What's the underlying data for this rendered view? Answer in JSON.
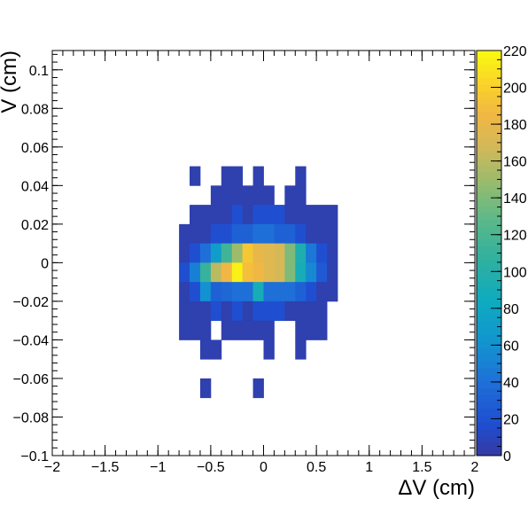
{
  "chart_data": {
    "type": "heatmap",
    "title": "",
    "xlabel": "ΔV (cm)",
    "ylabel": "V (cm)",
    "xlim": [
      -2,
      2
    ],
    "ylim": [
      -0.1,
      0.11
    ],
    "x_ticks": [
      "−2",
      "−1.5",
      "−1",
      "−0.5",
      "0",
      "0.5",
      "1",
      "1.5",
      "2"
    ],
    "y_ticks": [
      "−0.1",
      "−0.08",
      "−0.06",
      "−0.04",
      "−0.02",
      "0",
      "0.02",
      "0.04",
      "0.06",
      "0.08",
      "0.1"
    ],
    "colorbar": {
      "range": [
        0,
        220
      ],
      "ticks": [
        "0",
        "20",
        "40",
        "60",
        "80",
        "100",
        "120",
        "140",
        "160",
        "180",
        "200",
        "220"
      ]
    },
    "bin_width_x": 0.1,
    "bin_width_y": 0.01,
    "cells": [
      {
        "x": -0.65,
        "y": 0.045,
        "v": 5
      },
      {
        "x": -0.35,
        "y": 0.045,
        "v": 5
      },
      {
        "x": -0.25,
        "y": 0.045,
        "v": 5
      },
      {
        "x": -0.05,
        "y": 0.045,
        "v": 5
      },
      {
        "x": 0.35,
        "y": 0.045,
        "v": 5
      },
      {
        "x": -0.45,
        "y": 0.035,
        "v": 5
      },
      {
        "x": -0.35,
        "y": 0.035,
        "v": 5
      },
      {
        "x": -0.25,
        "y": 0.035,
        "v": 5
      },
      {
        "x": -0.15,
        "y": 0.035,
        "v": 5
      },
      {
        "x": -0.05,
        "y": 0.035,
        "v": 5
      },
      {
        "x": 0.05,
        "y": 0.035,
        "v": 5
      },
      {
        "x": 0.25,
        "y": 0.035,
        "v": 5
      },
      {
        "x": 0.35,
        "y": 0.035,
        "v": 5
      },
      {
        "x": -0.65,
        "y": 0.025,
        "v": 5
      },
      {
        "x": -0.55,
        "y": 0.025,
        "v": 5
      },
      {
        "x": -0.45,
        "y": 0.025,
        "v": 5
      },
      {
        "x": -0.35,
        "y": 0.025,
        "v": 5
      },
      {
        "x": -0.25,
        "y": 0.025,
        "v": 18
      },
      {
        "x": -0.15,
        "y": 0.025,
        "v": 5
      },
      {
        "x": -0.05,
        "y": 0.025,
        "v": 18
      },
      {
        "x": 0.05,
        "y": 0.025,
        "v": 18
      },
      {
        "x": 0.15,
        "y": 0.025,
        "v": 18
      },
      {
        "x": 0.25,
        "y": 0.025,
        "v": 5
      },
      {
        "x": 0.35,
        "y": 0.025,
        "v": 5
      },
      {
        "x": 0.45,
        "y": 0.025,
        "v": 5
      },
      {
        "x": 0.55,
        "y": 0.025,
        "v": 5
      },
      {
        "x": 0.65,
        "y": 0.025,
        "v": 5
      },
      {
        "x": -0.75,
        "y": 0.015,
        "v": 5
      },
      {
        "x": -0.65,
        "y": 0.015,
        "v": 5
      },
      {
        "x": -0.55,
        "y": 0.015,
        "v": 5
      },
      {
        "x": -0.45,
        "y": 0.015,
        "v": 18
      },
      {
        "x": -0.35,
        "y": 0.015,
        "v": 18
      },
      {
        "x": -0.25,
        "y": 0.015,
        "v": 30
      },
      {
        "x": -0.15,
        "y": 0.015,
        "v": 30
      },
      {
        "x": -0.05,
        "y": 0.015,
        "v": 40
      },
      {
        "x": 0.05,
        "y": 0.015,
        "v": 40
      },
      {
        "x": 0.15,
        "y": 0.015,
        "v": 30
      },
      {
        "x": 0.25,
        "y": 0.015,
        "v": 30
      },
      {
        "x": 0.35,
        "y": 0.015,
        "v": 18
      },
      {
        "x": 0.45,
        "y": 0.015,
        "v": 5
      },
      {
        "x": 0.55,
        "y": 0.015,
        "v": 5
      },
      {
        "x": 0.65,
        "y": 0.015,
        "v": 5
      },
      {
        "x": -0.75,
        "y": 0.005,
        "v": 5
      },
      {
        "x": -0.65,
        "y": 0.005,
        "v": 18
      },
      {
        "x": -0.55,
        "y": 0.005,
        "v": 40
      },
      {
        "x": -0.45,
        "y": 0.005,
        "v": 70
      },
      {
        "x": -0.35,
        "y": 0.005,
        "v": 115
      },
      {
        "x": -0.25,
        "y": 0.005,
        "v": 150
      },
      {
        "x": -0.15,
        "y": 0.005,
        "v": 195
      },
      {
        "x": -0.05,
        "y": 0.005,
        "v": 180
      },
      {
        "x": 0.05,
        "y": 0.005,
        "v": 175
      },
      {
        "x": 0.15,
        "y": 0.005,
        "v": 170
      },
      {
        "x": 0.25,
        "y": 0.005,
        "v": 140
      },
      {
        "x": 0.35,
        "y": 0.005,
        "v": 95
      },
      {
        "x": 0.45,
        "y": 0.005,
        "v": 45
      },
      {
        "x": 0.55,
        "y": 0.005,
        "v": 18
      },
      {
        "x": 0.65,
        "y": 0.005,
        "v": 5
      },
      {
        "x": -0.75,
        "y": -0.005,
        "v": 18
      },
      {
        "x": -0.65,
        "y": -0.005,
        "v": 50
      },
      {
        "x": -0.55,
        "y": -0.005,
        "v": 110
      },
      {
        "x": -0.45,
        "y": -0.005,
        "v": 160
      },
      {
        "x": -0.35,
        "y": -0.005,
        "v": 185
      },
      {
        "x": -0.25,
        "y": -0.005,
        "v": 215
      },
      {
        "x": -0.15,
        "y": -0.005,
        "v": 190
      },
      {
        "x": -0.05,
        "y": -0.005,
        "v": 185
      },
      {
        "x": 0.05,
        "y": -0.005,
        "v": 175
      },
      {
        "x": 0.15,
        "y": -0.005,
        "v": 170
      },
      {
        "x": 0.25,
        "y": -0.005,
        "v": 140
      },
      {
        "x": 0.35,
        "y": -0.005,
        "v": 90
      },
      {
        "x": 0.45,
        "y": -0.005,
        "v": 55
      },
      {
        "x": 0.55,
        "y": -0.005,
        "v": 25
      },
      {
        "x": 0.65,
        "y": -0.005,
        "v": 5
      },
      {
        "x": -0.75,
        "y": -0.015,
        "v": 5
      },
      {
        "x": -0.65,
        "y": -0.015,
        "v": 18
      },
      {
        "x": -0.55,
        "y": -0.015,
        "v": 60
      },
      {
        "x": -0.45,
        "y": -0.015,
        "v": 30
      },
      {
        "x": -0.35,
        "y": -0.015,
        "v": 35
      },
      {
        "x": -0.25,
        "y": -0.015,
        "v": 40
      },
      {
        "x": -0.15,
        "y": -0.015,
        "v": 40
      },
      {
        "x": -0.05,
        "y": -0.015,
        "v": 90
      },
      {
        "x": 0.05,
        "y": -0.015,
        "v": 40
      },
      {
        "x": 0.15,
        "y": -0.015,
        "v": 40
      },
      {
        "x": 0.25,
        "y": -0.015,
        "v": 40
      },
      {
        "x": 0.35,
        "y": -0.015,
        "v": 30
      },
      {
        "x": 0.45,
        "y": -0.015,
        "v": 18
      },
      {
        "x": 0.55,
        "y": -0.015,
        "v": 5
      },
      {
        "x": 0.65,
        "y": -0.015,
        "v": 5
      },
      {
        "x": -0.75,
        "y": -0.025,
        "v": 5
      },
      {
        "x": -0.65,
        "y": -0.025,
        "v": 5
      },
      {
        "x": -0.55,
        "y": -0.025,
        "v": 5
      },
      {
        "x": -0.45,
        "y": -0.025,
        "v": 18
      },
      {
        "x": -0.35,
        "y": -0.025,
        "v": 5
      },
      {
        "x": -0.25,
        "y": -0.025,
        "v": 18
      },
      {
        "x": -0.15,
        "y": -0.025,
        "v": 5
      },
      {
        "x": -0.05,
        "y": -0.025,
        "v": 18
      },
      {
        "x": 0.05,
        "y": -0.025,
        "v": 18
      },
      {
        "x": 0.15,
        "y": -0.025,
        "v": 18
      },
      {
        "x": 0.25,
        "y": -0.025,
        "v": 5
      },
      {
        "x": 0.35,
        "y": -0.025,
        "v": 5
      },
      {
        "x": 0.45,
        "y": -0.025,
        "v": 5
      },
      {
        "x": 0.55,
        "y": -0.025,
        "v": 5
      },
      {
        "x": -0.75,
        "y": -0.035,
        "v": 5
      },
      {
        "x": -0.65,
        "y": -0.035,
        "v": 5
      },
      {
        "x": -0.55,
        "y": -0.035,
        "v": 5
      },
      {
        "x": -0.35,
        "y": -0.035,
        "v": 5
      },
      {
        "x": -0.25,
        "y": -0.035,
        "v": 5
      },
      {
        "x": -0.15,
        "y": -0.035,
        "v": 5
      },
      {
        "x": -0.05,
        "y": -0.035,
        "v": 5
      },
      {
        "x": 0.05,
        "y": -0.035,
        "v": 5
      },
      {
        "x": 0.35,
        "y": -0.035,
        "v": 5
      },
      {
        "x": 0.45,
        "y": -0.035,
        "v": 5
      },
      {
        "x": 0.55,
        "y": -0.035,
        "v": 5
      },
      {
        "x": -0.55,
        "y": -0.045,
        "v": 5
      },
      {
        "x": -0.45,
        "y": -0.045,
        "v": 5
      },
      {
        "x": 0.05,
        "y": -0.045,
        "v": 5
      },
      {
        "x": 0.35,
        "y": -0.045,
        "v": 5
      },
      {
        "x": -0.55,
        "y": -0.065,
        "v": 5
      },
      {
        "x": -0.05,
        "y": -0.065,
        "v": 5
      }
    ]
  }
}
